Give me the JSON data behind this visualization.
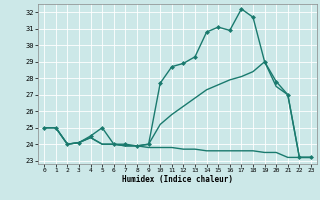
{
  "xlabel": "Humidex (Indice chaleur)",
  "bg_color": "#cce8e8",
  "grid_color": "#ffffff",
  "line_color": "#1a7a6e",
  "xlim": [
    -0.5,
    23.5
  ],
  "ylim": [
    22.8,
    32.5
  ],
  "yticks": [
    23,
    24,
    25,
    26,
    27,
    28,
    29,
    30,
    31,
    32
  ],
  "xticks": [
    0,
    1,
    2,
    3,
    4,
    5,
    6,
    7,
    8,
    9,
    10,
    11,
    12,
    13,
    14,
    15,
    16,
    17,
    18,
    19,
    20,
    21,
    22,
    23
  ],
  "series": [
    {
      "x": [
        0,
        1,
        2,
        3,
        4,
        5,
        6,
        7,
        8,
        9,
        10,
        11,
        12,
        13,
        14,
        15,
        16,
        17,
        18,
        19,
        20,
        21,
        22,
        23
      ],
      "y": [
        25.0,
        25.0,
        24.0,
        24.1,
        24.4,
        24.0,
        24.0,
        23.9,
        23.9,
        23.8,
        23.8,
        23.8,
        23.7,
        23.7,
        23.6,
        23.6,
        23.6,
        23.6,
        23.6,
        23.5,
        23.5,
        23.2,
        23.2,
        23.2
      ],
      "marker": false,
      "linewidth": 1.0
    },
    {
      "x": [
        0,
        1,
        2,
        3,
        4,
        5,
        6,
        7,
        8,
        9,
        10,
        11,
        12,
        13,
        14,
        15,
        16,
        17,
        18,
        19,
        20,
        21,
        22,
        23
      ],
      "y": [
        25.0,
        25.0,
        24.0,
        24.1,
        24.4,
        24.0,
        24.0,
        23.9,
        23.9,
        24.0,
        25.2,
        25.8,
        26.3,
        26.8,
        27.3,
        27.6,
        27.9,
        28.1,
        28.4,
        29.0,
        27.5,
        27.0,
        23.2,
        23.2
      ],
      "marker": false,
      "linewidth": 1.0
    },
    {
      "x": [
        0,
        1,
        2,
        3,
        4,
        5,
        6,
        7,
        8,
        9,
        10,
        11,
        12,
        13,
        14,
        15,
        16,
        17,
        18,
        19,
        20,
        21,
        22,
        23
      ],
      "y": [
        25.0,
        25.0,
        24.0,
        24.1,
        24.5,
        25.0,
        24.0,
        24.0,
        23.9,
        24.0,
        27.7,
        28.7,
        28.9,
        29.3,
        30.8,
        31.1,
        30.9,
        32.2,
        31.7,
        29.0,
        27.8,
        27.0,
        23.2,
        23.2
      ],
      "marker": true,
      "linewidth": 1.0
    }
  ]
}
